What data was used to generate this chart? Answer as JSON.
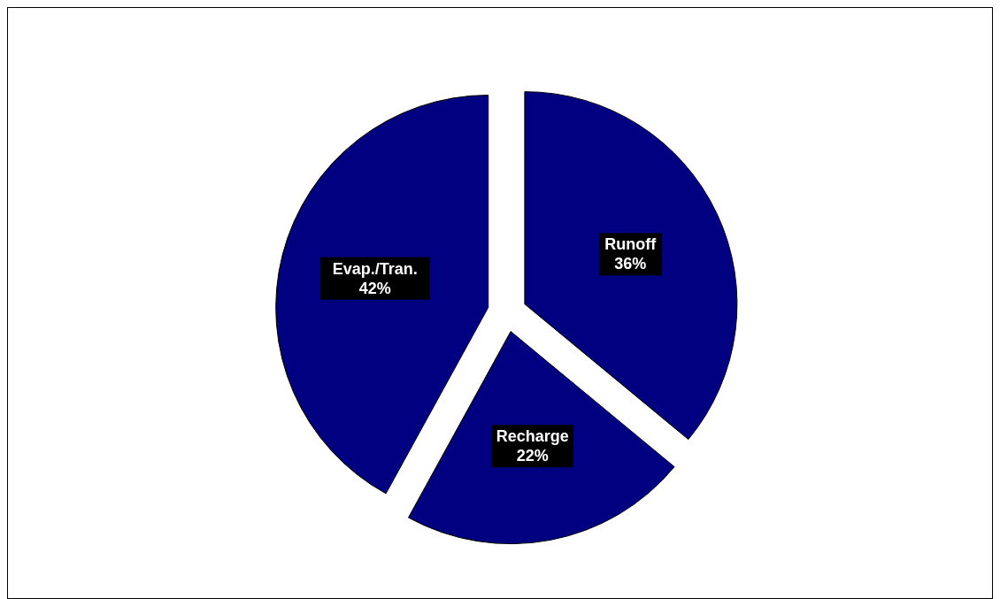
{
  "chart_data": {
    "type": "pie",
    "categories": [
      "Runoff",
      "Recharge",
      "Evap./Tran."
    ],
    "values": [
      36,
      22,
      42
    ],
    "value_labels": [
      "36%",
      "22%",
      "42%"
    ],
    "colors": [
      "#000080",
      "#000080",
      "#000080"
    ],
    "legend": false
  }
}
